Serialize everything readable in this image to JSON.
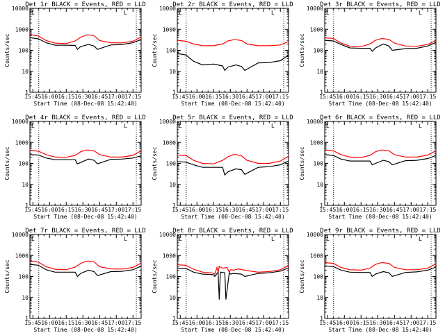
{
  "chart_data": {
    "type": "line",
    "y_scale": "log",
    "ylim": [
      1,
      10000
    ],
    "y_ticks": [
      "10000",
      "1000",
      "100",
      "10",
      "1"
    ],
    "ylabel": "Counts/sec",
    "xlabel": "Start Time (08-Dec-08 15:42:40)",
    "x_ticks": [
      "15:45",
      "16:00",
      "16:15",
      "16:30",
      "16:45",
      "17:00",
      "17:15"
    ],
    "x_range_minutes": [
      -2.67,
      97.33
    ],
    "vlines_minutes": [
      5.3,
      93.0
    ],
    "corner_mark": "L",
    "colors": {
      "events": "#000000",
      "lld": "#ff0000"
    },
    "panels": [
      {
        "title": "Det 1r BLACK = Events, RED = LLD",
        "series": [
          {
            "name": "Events",
            "color": "#000000",
            "x": [
              -2.67,
              5,
              12,
              20,
              30,
              38,
              40,
              43,
              50,
              55,
              58,
              70,
              80,
              90,
              97.33
            ],
            "values": [
              400,
              350,
              230,
              175,
              175,
              170,
              110,
              150,
              190,
              160,
              110,
              180,
              190,
              230,
              330
            ]
          },
          {
            "name": "LLD",
            "color": "#ff0000",
            "x": [
              -2.67,
              5,
              12,
              20,
              30,
              38,
              43,
              48,
              50,
              55,
              60,
              70,
              80,
              90,
              97.33
            ],
            "values": [
              560,
              480,
              290,
              220,
              210,
              280,
              420,
              530,
              540,
              500,
              290,
              230,
              225,
              270,
              430
            ]
          }
        ]
      },
      {
        "title": "Det 2r BLACK = Events, RED = LLD",
        "series": [
          {
            "name": "Events",
            "color": "#000000",
            "x": [
              -2.67,
              5,
              12,
              20,
              30,
              38,
              40,
              43,
              50,
              55,
              58,
              70,
              80,
              90,
              97.33
            ],
            "values": [
              70,
              60,
              30,
              20,
              22,
              18,
              11,
              16,
              20,
              17,
              11,
              25,
              26,
              32,
              60
            ]
          },
          {
            "name": "LLD",
            "color": "#ff0000",
            "x": [
              -2.67,
              5,
              12,
              20,
              30,
              38,
              43,
              48,
              50,
              55,
              60,
              70,
              80,
              90,
              97.33
            ],
            "values": [
              300,
              270,
              200,
              165,
              165,
              200,
              280,
              320,
              320,
              290,
              200,
              165,
              165,
              180,
              260
            ]
          }
        ]
      },
      {
        "title": "Det 3r BLACK = Events, RED = LLD",
        "series": [
          {
            "name": "Events",
            "color": "#000000",
            "x": [
              -2.67,
              5,
              12,
              20,
              30,
              38,
              40,
              43,
              50,
              55,
              58,
              70,
              80,
              90,
              97.33
            ],
            "values": [
              300,
              280,
              190,
              130,
              125,
              125,
              90,
              130,
              200,
              160,
              100,
              120,
              125,
              160,
              240
            ]
          },
          {
            "name": "LLD",
            "color": "#ff0000",
            "x": [
              -2.67,
              5,
              12,
              20,
              30,
              38,
              43,
              48,
              50,
              55,
              60,
              70,
              80,
              90,
              97.33
            ],
            "values": [
              390,
              370,
              220,
              155,
              150,
              200,
              300,
              360,
              360,
              330,
              220,
              160,
              155,
              190,
              290
            ]
          }
        ]
      },
      {
        "title": "Det 4r BLACK = Events, RED = LLD",
        "series": [
          {
            "name": "Events",
            "color": "#000000",
            "x": [
              -2.67,
              5,
              12,
              20,
              30,
              38,
              40,
              43,
              50,
              55,
              58,
              70,
              80,
              90,
              97.33
            ],
            "values": [
              260,
              250,
              180,
              150,
              150,
              150,
              95,
              110,
              160,
              140,
              95,
              155,
              160,
              180,
              230
            ]
          },
          {
            "name": "LLD",
            "color": "#ff0000",
            "x": [
              -2.67,
              5,
              12,
              20,
              30,
              38,
              43,
              48,
              50,
              55,
              60,
              70,
              80,
              90,
              97.33
            ],
            "values": [
              420,
              380,
              260,
              200,
              195,
              240,
              360,
              430,
              430,
              400,
              260,
              200,
              200,
              240,
              400
            ]
          }
        ]
      },
      {
        "title": "Det 5r BLACK = Events, RED = LLD",
        "series": [
          {
            "name": "Events",
            "color": "#000000",
            "x": [
              -2.67,
              5,
              12,
              20,
              30,
              38,
              40,
              43,
              50,
              55,
              58,
              70,
              80,
              90,
              97.33
            ],
            "values": [
              120,
              115,
              85,
              65,
              65,
              65,
              28,
              40,
              55,
              50,
              30,
              65,
              70,
              85,
              130
            ]
          },
          {
            "name": "LLD",
            "color": "#ff0000",
            "x": [
              -2.67,
              5,
              12,
              20,
              30,
              38,
              43,
              48,
              50,
              55,
              60,
              70,
              80,
              90,
              97.33
            ],
            "values": [
              250,
              240,
              140,
              100,
              95,
              140,
              210,
              260,
              260,
              230,
              140,
              100,
              100,
              130,
              220
            ]
          }
        ]
      },
      {
        "title": "Det 6r BLACK = Events, RED = LLD",
        "series": [
          {
            "name": "Events",
            "color": "#000000",
            "x": [
              -2.67,
              5,
              12,
              20,
              30,
              38,
              40,
              43,
              50,
              55,
              58,
              70,
              80,
              90,
              97.33
            ],
            "values": [
              260,
              240,
              160,
              130,
              130,
              130,
              85,
              100,
              140,
              120,
              85,
              135,
              140,
              170,
              240
            ]
          },
          {
            "name": "LLD",
            "color": "#ff0000",
            "x": [
              -2.67,
              5,
              12,
              20,
              30,
              38,
              43,
              48,
              50,
              55,
              60,
              70,
              80,
              90,
              97.33
            ],
            "values": [
              440,
              400,
              260,
              200,
              190,
              240,
              360,
              430,
              430,
              400,
              260,
              200,
              200,
              250,
              400
            ]
          }
        ]
      },
      {
        "title": "Det 7r BLACK = Events, RED = LLD",
        "series": [
          {
            "name": "Events",
            "color": "#000000",
            "x": [
              -2.67,
              5,
              12,
              20,
              30,
              38,
              40,
              43,
              50,
              55,
              58,
              70,
              80,
              90,
              97.33
            ],
            "values": [
              380,
              340,
              210,
              160,
              160,
              160,
              100,
              140,
              200,
              170,
              110,
              170,
              175,
              210,
              310
            ]
          },
          {
            "name": "LLD",
            "color": "#ff0000",
            "x": [
              -2.67,
              5,
              12,
              20,
              30,
              38,
              43,
              48,
              50,
              55,
              60,
              70,
              80,
              90,
              97.33
            ],
            "values": [
              560,
              480,
              290,
              220,
              210,
              280,
              420,
              530,
              540,
              500,
              290,
              230,
              225,
              270,
              430
            ]
          }
        ]
      },
      {
        "title": "Det 8r BLACK = Events, RED = LLD",
        "series": [
          {
            "name": "Events",
            "color": "#000000",
            "x": [
              -2.67,
              5,
              12,
              20,
              28,
              30,
              31,
              34,
              35,
              36,
              40,
              41,
              44,
              45,
              48,
              55,
              58,
              70,
              80,
              90,
              97.33
            ],
            "values": [
              250,
              240,
              160,
              130,
              125,
              120,
              100,
              160,
              8,
              160,
              150,
              8,
              150,
              130,
              140,
              130,
              100,
              140,
              150,
              180,
              260
            ]
          },
          {
            "name": "LLD",
            "color": "#ff0000",
            "x": [
              -2.67,
              5,
              12,
              20,
              28,
              30,
              31,
              33,
              34,
              35,
              36,
              38,
              42,
              44,
              45,
              48,
              52,
              56,
              60,
              70,
              80,
              90,
              97.33
            ],
            "values": [
              360,
              340,
              220,
              160,
              150,
              140,
              130,
              270,
              160,
              300,
              280,
              250,
              270,
              160,
              210,
              200,
              230,
              210,
              190,
              160,
              170,
              210,
              340
            ]
          }
        ]
      },
      {
        "title": "Det 9r BLACK = Events, RED = LLD",
        "series": [
          {
            "name": "Events",
            "color": "#000000",
            "x": [
              -2.67,
              5,
              12,
              20,
              30,
              38,
              40,
              43,
              50,
              55,
              58,
              70,
              80,
              90,
              97.33
            ],
            "values": [
              320,
              300,
              200,
              160,
              155,
              155,
              100,
              130,
              170,
              150,
              100,
              155,
              165,
              200,
              280
            ]
          },
          {
            "name": "LLD",
            "color": "#ff0000",
            "x": [
              -2.67,
              5,
              12,
              20,
              30,
              38,
              43,
              48,
              50,
              55,
              60,
              70,
              80,
              90,
              97.33
            ],
            "values": [
              460,
              420,
              270,
              210,
              200,
              250,
              380,
              450,
              450,
              420,
              270,
              210,
              210,
              250,
              400
            ]
          }
        ]
      }
    ]
  }
}
